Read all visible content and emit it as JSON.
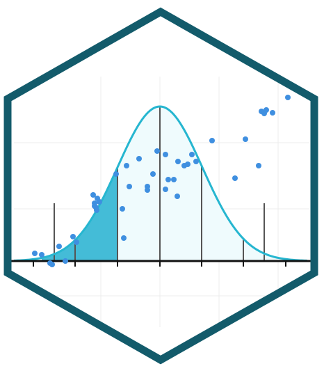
{
  "logo": {
    "hex_border_color": "#135b6b",
    "hex_fill_color": "#ffffff",
    "curve_stroke_color": "#26b6d0",
    "curve_fill_color": "#effbfd",
    "shaded_region_color": "#44bcd7",
    "point_color": "#3f8fe0",
    "axis_color": "#111111",
    "reference_line_color": "#555555",
    "grid_color": "#ececec",
    "icon": "normal-distribution-hexagon-icon"
  }
}
